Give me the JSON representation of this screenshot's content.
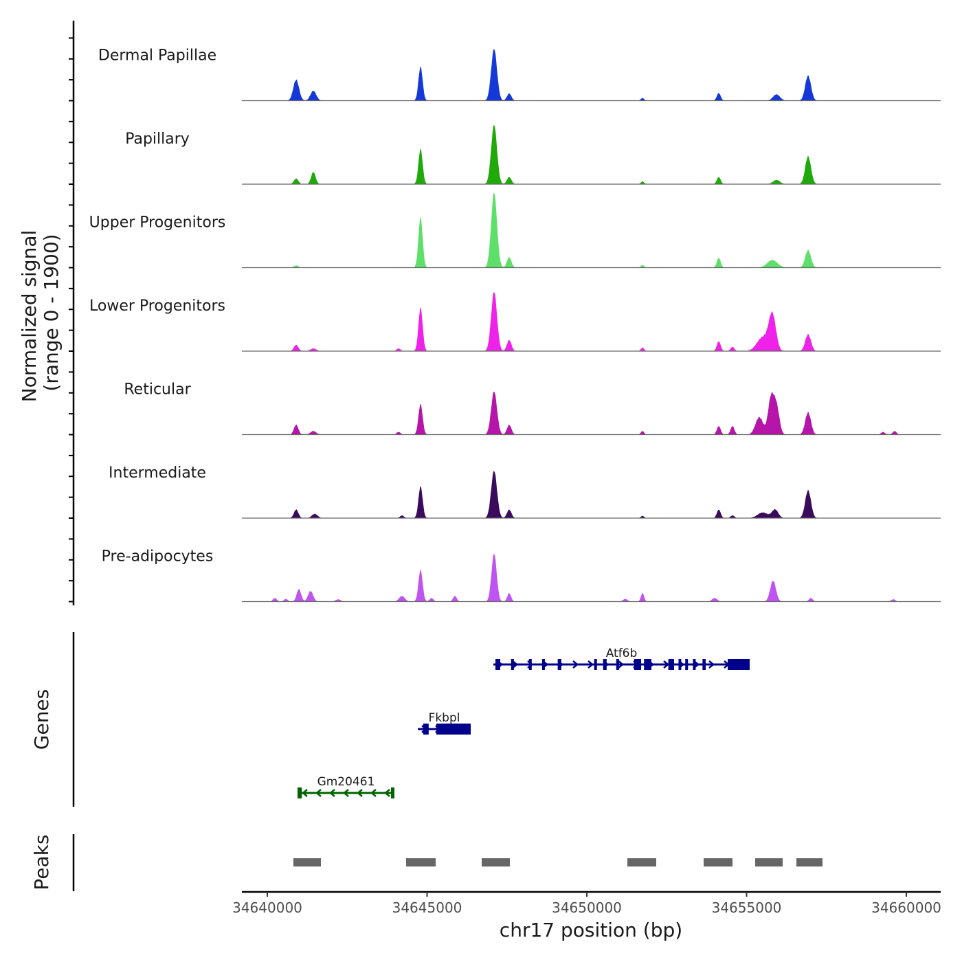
{
  "chart_data": {
    "type": "area",
    "title": "",
    "ylabel_line1": "Normalized signal",
    "ylabel_line2": "(range 0 - 1900)",
    "xlabel": "chr17 position (bp)",
    "xlim": [
      34639204,
      34661075
    ],
    "ylim": [
      0,
      1900
    ],
    "x_ticks": [
      34640000,
      34645000,
      34650000,
      34655000,
      34660000
    ],
    "x_tick_labels": [
      "34640000",
      "34645000",
      "34650000",
      "34655000",
      "34660000"
    ],
    "genes_label": "Genes",
    "peaks_label": "Peaks",
    "tracks": [
      {
        "name": "Dermal Papillae",
        "color": "#1539D9",
        "peaks": [
          [
            34640903,
            470,
            90
          ],
          [
            34641441,
            220,
            90
          ],
          [
            34644796,
            770,
            65
          ],
          [
            34647097,
            1190,
            90
          ],
          [
            34647570,
            160,
            70
          ],
          [
            34651742,
            60,
            50
          ],
          [
            34654129,
            170,
            60
          ],
          [
            34655935,
            140,
            110
          ],
          [
            34656925,
            565,
            90
          ]
        ]
      },
      {
        "name": "Papillary",
        "color": "#1FAA0A",
        "peaks": [
          [
            34640903,
            125,
            70
          ],
          [
            34641441,
            270,
            70
          ],
          [
            34644796,
            800,
            65
          ],
          [
            34647097,
            1365,
            90
          ],
          [
            34647570,
            160,
            70
          ],
          [
            34651742,
            60,
            50
          ],
          [
            34654129,
            160,
            60
          ],
          [
            34655935,
            95,
            110
          ],
          [
            34656925,
            630,
            90
          ]
        ]
      },
      {
        "name": "Upper Progenitors",
        "color": "#5EDF6A",
        "peaks": [
          [
            34640903,
            50,
            70
          ],
          [
            34644796,
            1150,
            65
          ],
          [
            34647097,
            1730,
            90
          ],
          [
            34647570,
            235,
            70
          ],
          [
            34651742,
            60,
            50
          ],
          [
            34654129,
            220,
            60
          ],
          [
            34655806,
            170,
            160
          ],
          [
            34656925,
            390,
            90
          ]
        ]
      },
      {
        "name": "Lower Progenitors",
        "color": "#EE22E8",
        "peaks": [
          [
            34640903,
            140,
            70
          ],
          [
            34641441,
            60,
            90
          ],
          [
            34644108,
            60,
            60
          ],
          [
            34644796,
            990,
            65
          ],
          [
            34647097,
            1365,
            90
          ],
          [
            34647570,
            250,
            70
          ],
          [
            34651742,
            80,
            50
          ],
          [
            34654129,
            220,
            60
          ],
          [
            34654559,
            95,
            60
          ],
          [
            34655505,
            310,
            180
          ],
          [
            34655806,
            815,
            110
          ],
          [
            34656925,
            375,
            90
          ]
        ]
      },
      {
        "name": "Reticular",
        "color": "#B515A8",
        "peaks": [
          [
            34640903,
            220,
            70
          ],
          [
            34641441,
            80,
            90
          ],
          [
            34644108,
            60,
            60
          ],
          [
            34644796,
            690,
            65
          ],
          [
            34647097,
            990,
            90
          ],
          [
            34647570,
            220,
            70
          ],
          [
            34651742,
            80,
            50
          ],
          [
            34654129,
            190,
            60
          ],
          [
            34654559,
            190,
            60
          ],
          [
            34655398,
            390,
            120
          ],
          [
            34655763,
            815,
            90
          ],
          [
            34655935,
            630,
            90
          ],
          [
            34656925,
            500,
            90
          ],
          [
            34659269,
            60,
            60
          ],
          [
            34659634,
            80,
            60
          ]
        ]
      },
      {
        "name": "Intermediate",
        "color": "#3A0A5C",
        "peaks": [
          [
            34640903,
            190,
            70
          ],
          [
            34641484,
            95,
            90
          ],
          [
            34644215,
            60,
            60
          ],
          [
            34644796,
            720,
            65
          ],
          [
            34647097,
            1085,
            90
          ],
          [
            34647570,
            190,
            70
          ],
          [
            34651742,
            50,
            50
          ],
          [
            34654129,
            190,
            60
          ],
          [
            34654559,
            60,
            60
          ],
          [
            34655505,
            125,
            160
          ],
          [
            34655892,
            190,
            100
          ],
          [
            34656925,
            630,
            90
          ]
        ]
      },
      {
        "name": "Pre-adipocytes",
        "color": "#BF55F0",
        "peaks": [
          [
            34640237,
            80,
            60
          ],
          [
            34640581,
            60,
            60
          ],
          [
            34640989,
            280,
            70
          ],
          [
            34641355,
            235,
            80
          ],
          [
            34642215,
            50,
            80
          ],
          [
            34644215,
            125,
            90
          ],
          [
            34644796,
            720,
            65
          ],
          [
            34645140,
            80,
            60
          ],
          [
            34645871,
            125,
            60
          ],
          [
            34647097,
            1100,
            80
          ],
          [
            34647570,
            190,
            60
          ],
          [
            34651204,
            60,
            70
          ],
          [
            34651742,
            190,
            50
          ],
          [
            34654000,
            80,
            80
          ],
          [
            34655828,
            470,
            90
          ],
          [
            34657011,
            80,
            60
          ],
          [
            34659591,
            50,
            70
          ]
        ]
      }
    ],
    "genes": [
      {
        "name": "Atf6b",
        "strand": "+",
        "color": "#00008B",
        "start": 34647075,
        "end": 34655097,
        "row": 0,
        "exons": [
          [
            34647140,
            34647290
          ],
          [
            34647630,
            34647690
          ],
          [
            34648190,
            34648240
          ],
          [
            34648600,
            34648660
          ],
          [
            34649090,
            34649200
          ],
          [
            34650230,
            34650300
          ],
          [
            34650510,
            34650620
          ],
          [
            34650920,
            34651000
          ],
          [
            34651480,
            34651700
          ],
          [
            34651790,
            34652020
          ],
          [
            34652550,
            34652730
          ],
          [
            34652870,
            34652940
          ],
          [
            34653080,
            34653140
          ],
          [
            34653320,
            34653400
          ],
          [
            34653620,
            34653720
          ],
          [
            34654410,
            34655097
          ]
        ]
      },
      {
        "name": "Fkbpl",
        "strand": "+",
        "color": "#00008B",
        "start": 34644710,
        "end": 34646366,
        "row": 1,
        "exons": [
          [
            34644880,
            34645050
          ],
          [
            34645290,
            34646366
          ]
        ]
      },
      {
        "name": "Gm20461",
        "strand": "-",
        "color": "#006400",
        "start": 34640946,
        "end": 34643978,
        "row": 2,
        "exons": [
          [
            34640946,
            34641080
          ],
          [
            34643870,
            34643978
          ]
        ]
      }
    ],
    "peak_regions": [
      [
        34640817,
        34641677
      ],
      [
        34644344,
        34645269
      ],
      [
        34646710,
        34647591
      ],
      [
        34651269,
        34652172
      ],
      [
        34653656,
        34654559
      ],
      [
        34655269,
        34656129
      ],
      [
        34656559,
        34657376
      ]
    ],
    "peak_color": "#666666"
  }
}
